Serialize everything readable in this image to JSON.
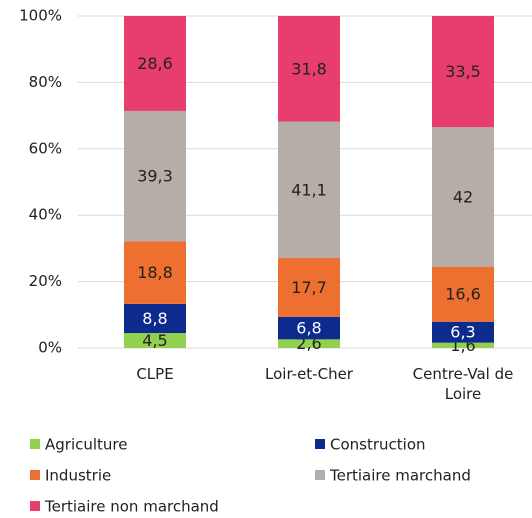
{
  "chart_data": {
    "type": "stacked_bar",
    "categories": [
      "CLPE",
      "Loir-et-Cher",
      "Centre-Val de Loire"
    ],
    "series": [
      {
        "name": "Agriculture",
        "color": "#92d050",
        "values": [
          4.5,
          2.6,
          1.6
        ],
        "value_labels": [
          "4,5",
          "2,6",
          "1,6"
        ]
      },
      {
        "name": "Construction",
        "color": "#0d2b8c",
        "values": [
          8.8,
          6.8,
          6.3
        ],
        "value_labels": [
          "8,8",
          "6,8",
          "6,3"
        ]
      },
      {
        "name": "Industrie",
        "color": "#ee7030",
        "values": [
          18.8,
          17.7,
          16.6
        ],
        "value_labels": [
          "18,8",
          "17,7",
          "16,6"
        ]
      },
      {
        "name": "Tertiaire marchand",
        "color": "#b4ada8",
        "values": [
          39.3,
          41.1,
          42
        ],
        "value_labels": [
          "39,3",
          "41,1",
          "42"
        ]
      },
      {
        "name": "Tertiaire non marchand",
        "color": "#e83e6e",
        "values": [
          28.6,
          31.8,
          33.5
        ],
        "value_labels": [
          "28,6",
          "31,8",
          "33,5"
        ]
      }
    ],
    "ylim": [
      0,
      100
    ],
    "yticks": [
      {
        "value": 0,
        "label": "0%"
      },
      {
        "value": 20,
        "label": "20%"
      },
      {
        "value": 40,
        "label": "40%"
      },
      {
        "value": 60,
        "label": "60%"
      },
      {
        "value": 80,
        "label": "80%"
      },
      {
        "value": 100,
        "label": "100%"
      }
    ],
    "grid": true
  }
}
